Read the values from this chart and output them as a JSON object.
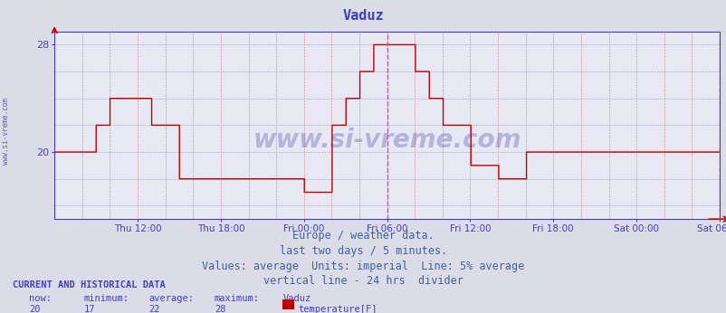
{
  "title": "Vaduz",
  "title_color": "#4040c0",
  "bg_color": "#dcdce8",
  "plot_bg_color": "#e8e8f4",
  "line_color": "#c00000",
  "vline_color": "#b060b0",
  "axis_color": "#4040c0",
  "tick_color": "#4040c0",
  "ylim_min": 15,
  "ylim_max": 29,
  "ytick_vals": [
    20,
    28
  ],
  "watermark_text": "www.si-vreme.com",
  "watermark_color": "#3030a0",
  "watermark_alpha": 0.28,
  "xlabel_color": "#4040c0",
  "left_label": "www.si-vreme.com",
  "footer_lines": [
    "Europe / weather data.",
    "last two days / 5 minutes.",
    "Values: average  Units: imperial  Line: 5% average",
    "vertical line - 24 hrs  divider"
  ],
  "footer_color": "#4060a0",
  "footer_fontsize": 8.5,
  "current_label": "CURRENT AND HISTORICAL DATA",
  "current_color": "#4040c0",
  "stats_labels": [
    "now:",
    "minimum:",
    "average:",
    "maximum:",
    "Vaduz"
  ],
  "stats_values": [
    "20",
    "17",
    "22",
    "28"
  ],
  "legend_label": "temperature[F]",
  "legend_color": "#bb0000",
  "x_tick_labels": [
    "Thu 12:00",
    "Thu 18:00",
    "Fri 00:00",
    "Fri 06:00",
    "Fri 12:00",
    "Fri 18:00",
    "Sat 00:00",
    "Sat 06:00"
  ],
  "temperature_data": [
    20,
    20,
    20,
    20,
    20,
    20,
    20,
    20,
    20,
    20,
    20,
    20,
    20,
    20,
    20,
    20,
    20,
    20,
    20,
    20,
    20,
    20,
    20,
    20,
    20,
    20,
    20,
    20,
    20,
    20,
    20,
    20,
    20,
    20,
    20,
    20,
    22,
    22,
    22,
    22,
    22,
    22,
    22,
    22,
    22,
    22,
    22,
    22,
    24,
    24,
    24,
    24,
    24,
    24,
    24,
    24,
    24,
    24,
    24,
    24,
    24,
    24,
    24,
    24,
    24,
    24,
    24,
    24,
    24,
    24,
    24,
    24,
    24,
    24,
    24,
    24,
    24,
    24,
    24,
    24,
    24,
    24,
    24,
    24,
    22,
    22,
    22,
    22,
    22,
    22,
    22,
    22,
    22,
    22,
    22,
    22,
    22,
    22,
    22,
    22,
    22,
    22,
    22,
    22,
    22,
    22,
    22,
    22,
    18,
    18,
    18,
    18,
    18,
    18,
    18,
    18,
    18,
    18,
    18,
    18,
    18,
    18,
    18,
    18,
    18,
    18,
    18,
    18,
    18,
    18,
    18,
    18,
    18,
    18,
    18,
    18,
    18,
    18,
    18,
    18,
    18,
    18,
    18,
    18,
    18,
    18,
    18,
    18,
    18,
    18,
    18,
    18,
    18,
    18,
    18,
    18,
    18,
    18,
    18,
    18,
    18,
    18,
    18,
    18,
    18,
    18,
    18,
    18,
    18,
    18,
    18,
    18,
    18,
    18,
    18,
    18,
    18,
    18,
    18,
    18,
    18,
    18,
    18,
    18,
    18,
    18,
    18,
    18,
    18,
    18,
    18,
    18,
    18,
    18,
    18,
    18,
    18,
    18,
    18,
    18,
    18,
    18,
    18,
    18,
    18,
    18,
    18,
    18,
    18,
    18,
    18,
    18,
    18,
    18,
    18,
    18,
    17,
    17,
    17,
    17,
    17,
    17,
    17,
    17,
    17,
    17,
    17,
    17,
    17,
    17,
    17,
    17,
    17,
    17,
    17,
    17,
    17,
    17,
    17,
    17,
    22,
    22,
    22,
    22,
    22,
    22,
    22,
    22,
    22,
    22,
    22,
    22,
    24,
    24,
    24,
    24,
    24,
    24,
    24,
    24,
    24,
    24,
    24,
    24,
    26,
    26,
    26,
    26,
    26,
    26,
    26,
    26,
    26,
    26,
    26,
    26,
    28,
    28,
    28,
    28,
    28,
    28,
    28,
    28,
    28,
    28,
    28,
    28,
    28,
    28,
    28,
    28,
    28,
    28,
    28,
    28,
    28,
    28,
    28,
    28,
    28,
    28,
    28,
    28,
    28,
    28,
    28,
    28,
    28,
    28,
    28,
    28,
    26,
    26,
    26,
    26,
    26,
    26,
    26,
    26,
    26,
    26,
    26,
    26,
    24,
    24,
    24,
    24,
    24,
    24,
    24,
    24,
    24,
    24,
    24,
    24,
    22,
    22,
    22,
    22,
    22,
    22,
    22,
    22,
    22,
    22,
    22,
    22,
    22,
    22,
    22,
    22,
    22,
    22,
    22,
    22,
    22,
    22,
    22,
    22,
    19,
    19,
    19,
    19,
    19,
    19,
    19,
    19,
    19,
    19,
    19,
    19,
    19,
    19,
    19,
    19,
    19,
    19,
    19,
    19,
    19,
    19,
    19,
    19,
    18,
    18,
    18,
    18,
    18,
    18,
    18,
    18,
    18,
    18,
    18,
    18,
    18,
    18,
    18,
    18,
    18,
    18,
    18,
    18,
    18,
    18,
    18,
    18,
    20,
    20,
    20,
    20,
    20,
    20,
    20,
    20,
    20,
    20,
    20,
    20,
    20,
    20,
    20,
    20,
    20,
    20,
    20,
    20,
    20,
    20,
    20,
    20,
    20,
    20,
    20,
    20,
    20,
    20,
    20,
    20,
    20,
    20,
    20,
    20,
    20,
    20,
    20,
    20,
    20,
    20,
    20,
    20,
    20,
    20,
    20,
    20,
    20,
    20,
    20,
    20,
    20,
    20,
    20,
    20,
    20,
    20,
    20,
    20,
    20,
    20,
    20,
    20,
    20,
    20,
    20,
    20,
    20,
    20,
    20,
    20,
    20,
    20,
    20,
    20,
    20,
    20,
    20,
    20,
    20,
    20,
    20,
    20,
    20,
    20,
    20,
    20,
    20,
    20,
    20,
    20,
    20,
    20,
    20,
    20,
    20,
    20,
    20,
    20,
    20,
    20,
    20,
    20,
    20,
    20,
    20,
    20,
    20,
    20,
    20,
    20,
    20,
    20,
    20,
    20,
    20,
    20,
    20,
    20,
    20,
    20,
    20,
    20,
    20,
    20,
    20,
    20,
    20,
    20,
    20,
    20,
    20,
    20,
    20,
    20,
    20,
    20,
    20,
    20,
    20,
    20,
    20,
    20,
    20,
    20,
    20,
    20,
    20,
    20,
    20,
    20,
    20,
    20,
    20,
    20,
    20,
    20,
    20,
    20,
    20,
    20,
    20,
    20,
    20,
    20,
    20,
    20
  ]
}
